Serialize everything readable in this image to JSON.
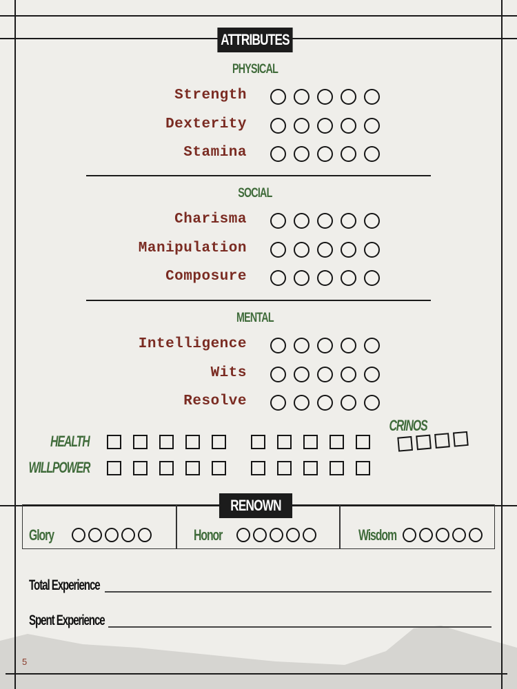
{
  "colors": {
    "accent_green": "#3f6b3a",
    "label_red": "#7a2b22",
    "banner": "#1c1c1c",
    "paper": "#efeeea"
  },
  "attributes": {
    "title": "ATTRIBUTES",
    "groups": [
      {
        "name": "PHYSICAL",
        "items": [
          {
            "label": "Strength",
            "value": 0
          },
          {
            "label": "Dexterity",
            "value": 0
          },
          {
            "label": "Stamina",
            "value": 0
          }
        ]
      },
      {
        "name": "SOCIAL",
        "items": [
          {
            "label": "Charisma",
            "value": 0
          },
          {
            "label": "Manipulation",
            "value": 0
          },
          {
            "label": "Composure",
            "value": 0
          }
        ]
      },
      {
        "name": "MENTAL",
        "items": [
          {
            "label": "Intelligence",
            "value": 0
          },
          {
            "label": "Wits",
            "value": 0
          },
          {
            "label": "Resolve",
            "value": 0
          }
        ]
      }
    ],
    "max_dots": 5
  },
  "trackers": {
    "health": {
      "label": "HEALTH",
      "boxes": 10
    },
    "willpower": {
      "label": "WILLPOWER",
      "boxes": 10
    },
    "crinos": {
      "label": "CRINOS",
      "boxes": 4
    }
  },
  "renown": {
    "title": "RENOWN",
    "items": [
      {
        "label": "Glory",
        "value": 0
      },
      {
        "label": "Honor",
        "value": 0
      },
      {
        "label": "Wisdom",
        "value": 0
      }
    ]
  },
  "experience": {
    "total_label": "Total Experience",
    "spent_label": "Spent Experience"
  },
  "page_number": "5"
}
